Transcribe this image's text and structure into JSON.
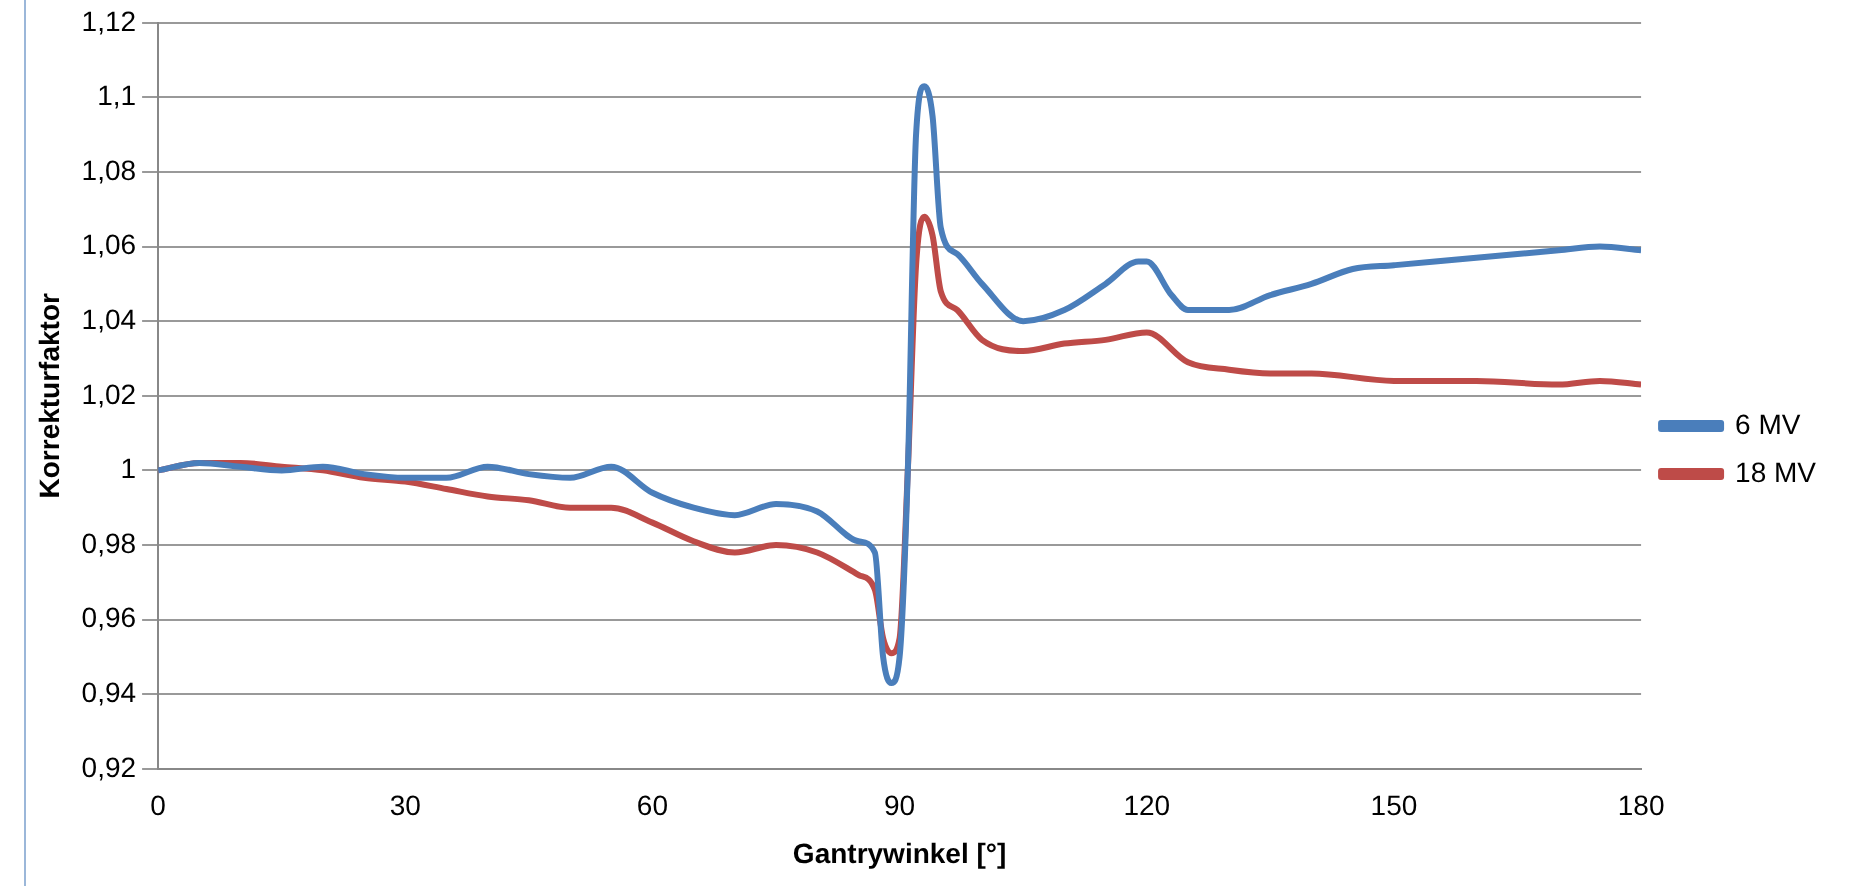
{
  "chart_data": {
    "type": "line",
    "xlabel": "Gantrywinkel [°]",
    "ylabel": "Korrekturfaktor",
    "xlim": [
      0,
      180
    ],
    "xticks": [
      0,
      30,
      60,
      90,
      120,
      150,
      180
    ],
    "ylim": [
      0.92,
      1.12
    ],
    "yticks": [
      {
        "value": 0.92,
        "label": "0,92"
      },
      {
        "value": 0.94,
        "label": "0,94"
      },
      {
        "value": 0.96,
        "label": "0,96"
      },
      {
        "value": 0.98,
        "label": "0,98"
      },
      {
        "value": 1,
        "label": "1"
      },
      {
        "value": 1.02,
        "label": "1,02"
      },
      {
        "value": 1.04,
        "label": "1,04"
      },
      {
        "value": 1.06,
        "label": "1,06"
      },
      {
        "value": 1.08,
        "label": "1,08"
      },
      {
        "value": 1.1,
        "label": "1,1"
      },
      {
        "value": 1.12,
        "label": "1,12"
      }
    ],
    "grid": "y",
    "legend": "right",
    "marker": "none",
    "line_style": "solid",
    "series": [
      {
        "name": "6 MV",
        "color": "#4a7ebb",
        "x": [
          0,
          5,
          10,
          15,
          20,
          25,
          30,
          35,
          40,
          45,
          50,
          55,
          60,
          65,
          70,
          75,
          80,
          85,
          87,
          88,
          89,
          90,
          91,
          92,
          93,
          94,
          95,
          97,
          100,
          105,
          110,
          115,
          119,
          120,
          123,
          125,
          130,
          135,
          140,
          145,
          150,
          155,
          160,
          165,
          170,
          175,
          180
        ],
        "values": [
          1.0,
          1.002,
          1.001,
          1.0,
          1.001,
          0.999,
          0.998,
          0.998,
          1.001,
          0.999,
          0.998,
          1.001,
          0.994,
          0.99,
          0.988,
          0.991,
          0.989,
          0.981,
          0.978,
          0.95,
          0.943,
          0.95,
          1.0,
          1.09,
          1.103,
          1.095,
          1.065,
          1.058,
          1.05,
          1.04,
          1.043,
          1.05,
          1.056,
          1.056,
          1.047,
          1.043,
          1.043,
          1.047,
          1.05,
          1.054,
          1.055,
          1.056,
          1.057,
          1.058,
          1.059,
          1.06,
          1.059
        ]
      },
      {
        "name": "18 MV",
        "color": "#be4b48",
        "x": [
          0,
          5,
          10,
          15,
          20,
          25,
          30,
          35,
          40,
          45,
          50,
          55,
          60,
          65,
          70,
          75,
          80,
          85,
          87,
          88,
          89,
          90,
          91,
          92,
          93,
          94,
          95,
          97,
          100,
          105,
          110,
          115,
          120,
          125,
          130,
          135,
          140,
          150,
          160,
          170,
          175,
          180
        ],
        "values": [
          1.0,
          1.002,
          1.002,
          1.001,
          1.0,
          0.998,
          0.997,
          0.995,
          0.993,
          0.992,
          0.99,
          0.99,
          0.986,
          0.981,
          0.978,
          0.98,
          0.978,
          0.972,
          0.968,
          0.955,
          0.951,
          0.955,
          1.0,
          1.055,
          1.068,
          1.063,
          1.048,
          1.043,
          1.035,
          1.032,
          1.034,
          1.035,
          1.037,
          1.029,
          1.027,
          1.026,
          1.026,
          1.024,
          1.024,
          1.023,
          1.024,
          1.023
        ]
      }
    ]
  }
}
